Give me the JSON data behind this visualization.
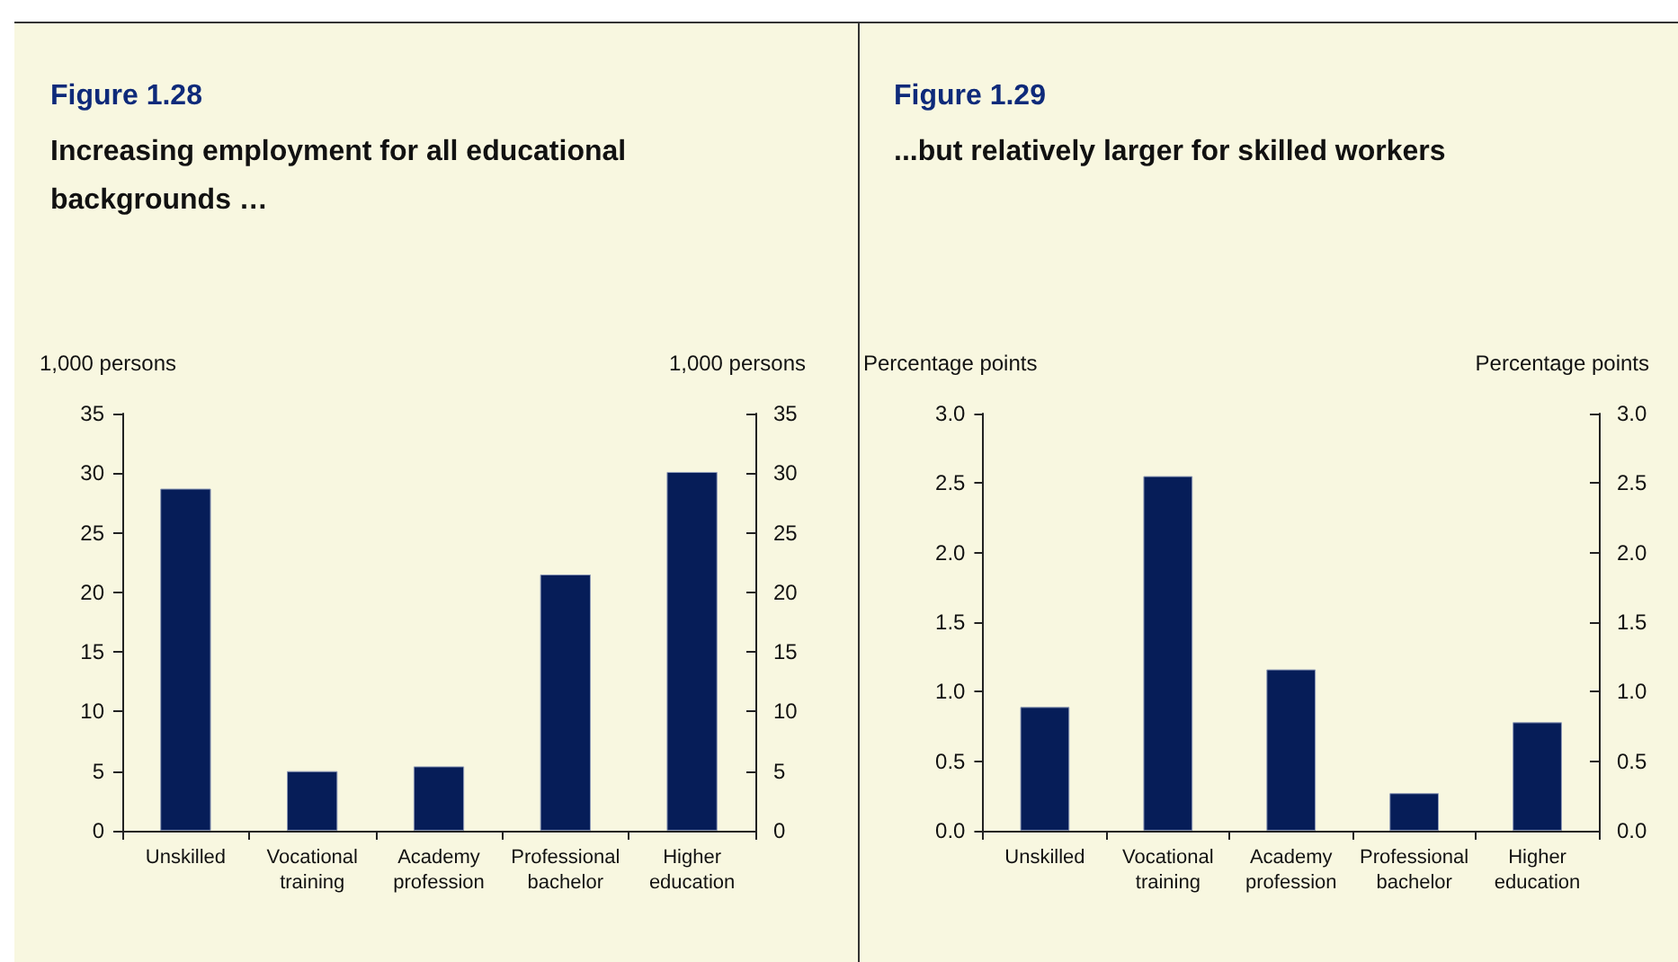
{
  "chart_data": [
    {
      "type": "bar",
      "title": "Figure 1.28",
      "subtitle": "Increasing employment for all educational backgrounds …",
      "ylabel": "1,000 persons",
      "y2label": "1,000 persons",
      "categories": [
        "Unskilled",
        "Vocational\ntraining",
        "Academy\nprofession",
        "Professional\nbachelor",
        "Higher\neducation"
      ],
      "values": [
        28.7,
        5.0,
        5.4,
        21.5,
        30.1
      ],
      "color": "#061d58",
      "ylim": [
        0,
        35
      ],
      "yticks": [
        0,
        5,
        10,
        15,
        20,
        25,
        30,
        35
      ],
      "y2lim": [
        0,
        35
      ],
      "y2ticks": [
        0,
        5,
        10,
        15,
        20,
        25,
        30,
        35
      ],
      "grid": false
    },
    {
      "type": "bar",
      "title": "Figure 1.29",
      "subtitle": "...but relatively larger for skilled workers",
      "ylabel": "Percentage points",
      "y2label": "Percentage points",
      "categories": [
        "Unskilled",
        "Vocational\ntraining",
        "Academy\nprofession",
        "Professional\nbachelor",
        "Higher\neducation"
      ],
      "values": [
        0.89,
        2.55,
        1.16,
        0.27,
        0.78
      ],
      "color": "#061d58",
      "ylim": [
        0,
        3.0
      ],
      "yticks": [
        {
          "value": 0,
          "label": "0.0"
        },
        0.5,
        {
          "value": 1,
          "label": "1.0"
        },
        1.5,
        {
          "value": 2,
          "label": "2.0"
        },
        2.5,
        {
          "value": 3,
          "label": "3.0"
        }
      ],
      "y2lim": [
        0,
        3.0
      ],
      "y2ticks": [
        {
          "value": 0,
          "label": "0.0"
        },
        0.5,
        {
          "value": 1,
          "label": "1.0"
        },
        1.5,
        {
          "value": 2,
          "label": "2.0"
        },
        2.5,
        {
          "value": 3,
          "label": "3.0"
        }
      ],
      "grid": false
    }
  ]
}
